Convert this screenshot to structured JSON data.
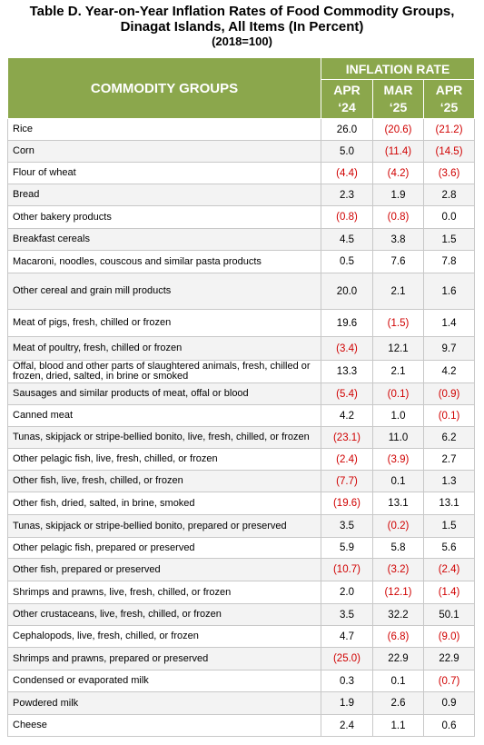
{
  "header": {
    "title_lines": [
      "Table D. Year-on-Year Inflation Rates of Food Commodity Groups,",
      "Dinagat Islands, All Items (In Percent)",
      "(2018=100)"
    ]
  },
  "table": {
    "group_header": "COMMODITY GROUPS",
    "rate_header": "INFLATION RATE",
    "columns": [
      {
        "month": "APR",
        "year": "‘24"
      },
      {
        "month": "MAR",
        "year": "‘25"
      },
      {
        "month": "APR",
        "year": "‘25"
      }
    ],
    "rows": [
      [
        "Rice",
        "26.0",
        "(20.6)",
        "(21.2)"
      ],
      [
        "Corn",
        "5.0",
        "(11.4)",
        "(14.5)"
      ],
      [
        "Flour of wheat",
        "(4.4)",
        "(4.2)",
        "(3.6)"
      ],
      [
        "Bread",
        "2.3",
        "1.9",
        "2.8"
      ],
      [
        "Other bakery products",
        "(0.8)",
        "(0.8)",
        "0.0"
      ],
      [
        "Breakfast cereals",
        "4.5",
        "3.8",
        "1.5"
      ],
      [
        "Macaroni, noodles, couscous and similar pasta products",
        "0.5",
        "7.6",
        "7.8"
      ],
      [
        "Other cereal and grain mill products",
        "20.0",
        "2.1",
        "1.6"
      ],
      [
        "Meat of pigs, fresh, chilled or frozen",
        "19.6",
        "(1.5)",
        "1.4"
      ],
      [
        "Meat of poultry, fresh, chilled or frozen",
        "(3.4)",
        "12.1",
        "9.7"
      ],
      [
        "Offal, blood and other parts of slaughtered animals, fresh, chilled or frozen, dried, salted, in brine or smoked",
        "13.3",
        "2.1",
        "4.2"
      ],
      [
        "Sausages and similar products of meat, offal or blood",
        "(5.4)",
        "(0.1)",
        "(0.9)"
      ],
      [
        "Canned meat",
        "4.2",
        "1.0",
        "(0.1)"
      ],
      [
        "Tunas, skipjack or stripe-bellied bonito, live, fresh, chilled, or frozen",
        "(23.1)",
        "11.0",
        "6.2"
      ],
      [
        "Other pelagic fish, live, fresh, chilled, or frozen",
        "(2.4)",
        "(3.9)",
        "2.7"
      ],
      [
        "Other fish, live, fresh, chilled, or frozen",
        "(7.7)",
        "0.1",
        "1.3"
      ],
      [
        "Other fish, dried, salted, in brine, smoked",
        "(19.6)",
        "13.1",
        "13.1"
      ],
      [
        "Tunas, skipjack or stripe-bellied bonito, prepared or preserved",
        "3.5",
        "(0.2)",
        "1.5"
      ],
      [
        "Other pelagic fish, prepared or preserved",
        "5.9",
        "5.8",
        "5.6"
      ],
      [
        "Other fish, prepared or preserved",
        "(10.7)",
        "(3.2)",
        "(2.4)"
      ],
      [
        "Shrimps and prawns, live, fresh, chilled, or frozen",
        "2.0",
        "(12.1)",
        "(1.4)"
      ],
      [
        "Other crustaceans, live, fresh, chilled, or frozen",
        "3.5",
        "32.2",
        "50.1"
      ],
      [
        "Cephalopods, live, fresh, chilled, or frozen",
        "4.7",
        "(6.8)",
        "(9.0)"
      ],
      [
        "Shrimps and prawns, prepared or preserved",
        "(25.0)",
        "22.9",
        "22.9"
      ],
      [
        "Condensed or evaporated milk",
        "0.3",
        "0.1",
        "(0.7)"
      ],
      [
        "Powdered milk",
        "1.9",
        "2.6",
        "0.9"
      ],
      [
        "Cheese",
        "2.4",
        "1.1",
        "0.6"
      ]
    ]
  }
}
